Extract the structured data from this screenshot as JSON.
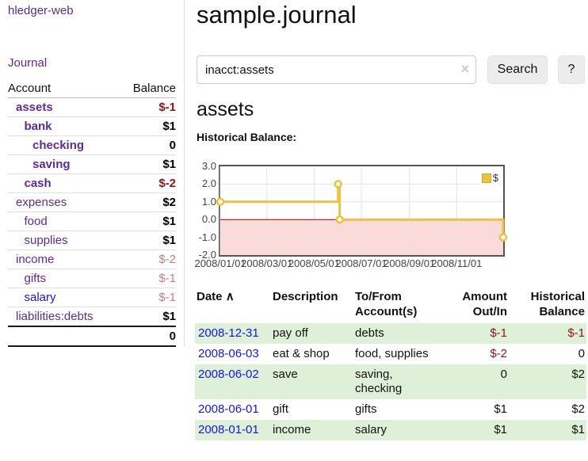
{
  "sidebar": {
    "brand": "hledger-web",
    "journal_link": "Journal",
    "columns": {
      "account": "Account",
      "balance": "Balance"
    },
    "accounts": [
      {
        "name": "assets",
        "balance": "$-1",
        "depth": 1,
        "bold": true,
        "tone": "neg",
        "link": "visited"
      },
      {
        "name": "bank",
        "balance": "$1",
        "depth": 2,
        "bold": true,
        "tone": "pos",
        "link": "visited"
      },
      {
        "name": "checking",
        "balance": "0",
        "depth": 3,
        "bold": true,
        "tone": "pos",
        "link": "visited"
      },
      {
        "name": "saving",
        "balance": "$1",
        "depth": 3,
        "bold": true,
        "tone": "pos",
        "link": "visited"
      },
      {
        "name": "cash",
        "balance": "$-2",
        "depth": 2,
        "bold": true,
        "tone": "neg",
        "link": "visited"
      },
      {
        "name": "expenses",
        "balance": "$2",
        "depth": 1,
        "bold": false,
        "tone": "pos",
        "link": "visited"
      },
      {
        "name": "food",
        "balance": "$1",
        "depth": 2,
        "bold": false,
        "tone": "pos",
        "link": "visited"
      },
      {
        "name": "supplies",
        "balance": "$1",
        "depth": 2,
        "bold": false,
        "tone": "pos",
        "link": "visited"
      },
      {
        "name": "income",
        "balance": "$-2",
        "depth": 1,
        "bold": false,
        "tone": "muted",
        "link": "visited"
      },
      {
        "name": "gifts",
        "balance": "$-1",
        "depth": 2,
        "bold": false,
        "tone": "muted",
        "link": "visited"
      },
      {
        "name": "salary",
        "balance": "$-1",
        "depth": 2,
        "bold": false,
        "tone": "muted",
        "link": "unvisited"
      },
      {
        "name": "liabilities:debts",
        "balance": "$1",
        "depth": 1,
        "bold": false,
        "tone": "pos",
        "link": "visited"
      }
    ],
    "total": "0"
  },
  "header": {
    "title": "sample.journal"
  },
  "search": {
    "value": "inacct:assets",
    "clear_icon": "×",
    "button_label": "Search",
    "help_label": "?"
  },
  "account_view": {
    "heading": "assets",
    "chart_title": "Historical Balance:"
  },
  "chart_data": {
    "type": "line",
    "title": "Historical Balance:",
    "style": "step-line-with-points",
    "legend_position": "top-right",
    "grid": true,
    "x_range": [
      "2008-01-01",
      "2008-12-31"
    ],
    "ylim": [
      -2,
      3
    ],
    "yticks": [
      3,
      2,
      1,
      0,
      -1,
      -2
    ],
    "ytick_labels": [
      "3.0",
      "2.0",
      "1.0",
      "0.0",
      "-1.0",
      "-2.0"
    ],
    "xtick_labels": [
      "2008/01/01",
      "2008/03/01",
      "2008/05/01",
      "2008/07/01",
      "2008/09/01",
      "2008/11/01"
    ],
    "series": [
      {
        "name": "$",
        "color": "#edc240",
        "points": [
          {
            "x": "2008-01-01",
            "y": 1
          },
          {
            "x": "2008-06-01",
            "y": 2
          },
          {
            "x": "2008-06-03",
            "y": 0
          },
          {
            "x": "2008-12-31",
            "y": -1
          }
        ]
      }
    ],
    "negative_region_fill": "#fbdada",
    "zero_line_color": "#8b0000",
    "gridline_color": "#e3e3e3",
    "border_color": "#545454"
  },
  "register": {
    "sort_icon": "∧",
    "columns": [
      {
        "label": "Date"
      },
      {
        "label": "Description"
      },
      {
        "label": "To/From Account(s)"
      },
      {
        "label": "Amount Out/In"
      },
      {
        "label": "Historical Balance"
      }
    ],
    "rows": [
      {
        "date": "2008-12-31",
        "description": "pay off",
        "accounts": "debts",
        "amount": "$-1",
        "balance": "$-1",
        "striped": true
      },
      {
        "date": "2008-06-03",
        "description": "eat & shop",
        "accounts": "food, supplies",
        "amount": "$-2",
        "balance": "0",
        "striped": false
      },
      {
        "date": "2008-06-02",
        "description": "save",
        "accounts": "saving, checking",
        "amount": "0",
        "balance": "$2",
        "striped": true
      },
      {
        "date": "2008-06-01",
        "description": "gift",
        "accounts": "gifts",
        "amount": "$1",
        "balance": "$2",
        "striped": false
      },
      {
        "date": "2008-01-01",
        "description": "income",
        "accounts": "salary",
        "amount": "$1",
        "balance": "$1",
        "striped": true
      }
    ]
  }
}
